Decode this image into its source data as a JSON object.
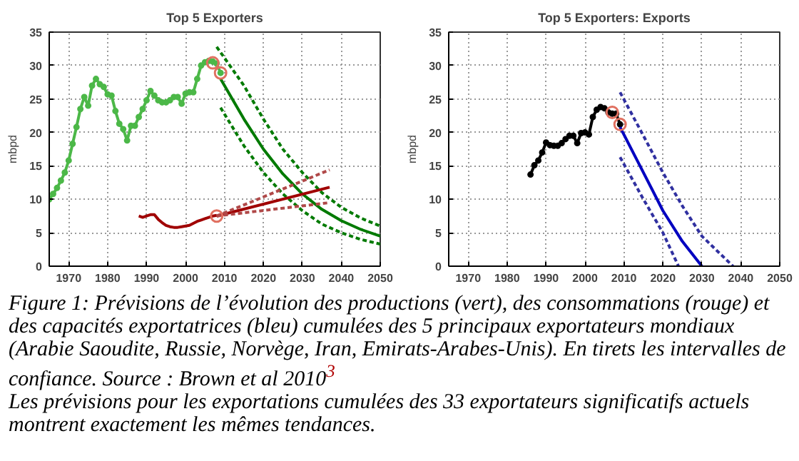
{
  "chart_data": [
    {
      "type": "line",
      "title": "Top 5 Exporters",
      "ylabel": "mbpd",
      "xlim": [
        1965,
        2050
      ],
      "ylim": [
        0,
        35
      ],
      "xticks": [
        1970,
        1980,
        1990,
        2000,
        2010,
        2020,
        2030,
        2040,
        2050
      ],
      "yticks": [
        {
          "value": 0,
          "label": "0"
        },
        5,
        10,
        15,
        20,
        25,
        30,
        35
      ],
      "grid": true,
      "marker": "none",
      "line_style": "solid",
      "series": [
        {
          "color": "#4cb848",
          "marker": "circle",
          "x": [
            1965,
            1966,
            1967,
            1968,
            1969,
            1970,
            1971,
            1972,
            1973,
            1974,
            1975,
            1976,
            1977,
            1978,
            1979,
            1980,
            1981,
            1982,
            1983,
            1984,
            1985,
            1986,
            1987,
            1988,
            1989,
            1990,
            1991,
            1992,
            1993,
            1994,
            1995,
            1996,
            1997,
            1998,
            1999,
            2000,
            2001,
            2002,
            2003,
            2004,
            2005,
            2006,
            2007,
            2008,
            2009
          ],
          "values": [
            10.0,
            10.8,
            11.7,
            12.8,
            14.0,
            15.8,
            18.3,
            20.8,
            23.5,
            25.3,
            24.0,
            27.0,
            28.0,
            27.2,
            26.8,
            25.7,
            25.5,
            23.2,
            21.3,
            20.5,
            18.8,
            21.0,
            21.0,
            22.3,
            23.5,
            24.8,
            26.2,
            25.5,
            24.8,
            24.5,
            24.5,
            24.8,
            25.3,
            25.3,
            24.3,
            25.8,
            26.0,
            26.0,
            28.0,
            30.0,
            30.5,
            30.7,
            30.6,
            30.3,
            28.9
          ]
        },
        {
          "color": "#007a00",
          "x": [
            2009,
            2015,
            2020,
            2025,
            2030,
            2035,
            2040,
            2045,
            2050
          ],
          "values": [
            28.0,
            22.0,
            17.5,
            13.8,
            10.8,
            8.5,
            6.8,
            5.5,
            4.5
          ]
        },
        {
          "color": "#007a00",
          "line_style": "dashed",
          "x": [
            2008,
            2015,
            2020,
            2025,
            2030,
            2035,
            2040,
            2045,
            2050
          ],
          "values": [
            32.8,
            27.0,
            22.0,
            17.5,
            14.0,
            11.0,
            8.8,
            7.2,
            6.0
          ]
        },
        {
          "color": "#007a00",
          "line_style": "dashed",
          "x": [
            2009,
            2015,
            2020,
            2025,
            2030,
            2035,
            2040,
            2045,
            2050
          ],
          "values": [
            23.7,
            18.0,
            14.0,
            10.8,
            8.3,
            6.3,
            5.0,
            4.0,
            3.3
          ]
        },
        {
          "color": "#a00000",
          "x": [
            1988,
            1989,
            1990,
            1991,
            1992,
            1993,
            1994,
            1995,
            1996,
            1997,
            1998,
            1999,
            2000,
            2001,
            2002,
            2003,
            2004,
            2005,
            2006,
            2007,
            2008
          ],
          "values": [
            7.5,
            7.3,
            7.5,
            7.7,
            7.7,
            7.0,
            6.5,
            6.1,
            5.9,
            5.8,
            5.8,
            5.9,
            6.0,
            6.1,
            6.4,
            6.7,
            6.9,
            7.1,
            7.3,
            7.5,
            7.6
          ]
        },
        {
          "color": "#a00000",
          "x": [
            2008,
            2037
          ],
          "values": [
            7.5,
            11.8
          ]
        },
        {
          "color": "#b04848",
          "line_style": "dashed",
          "x": [
            2008,
            2037
          ],
          "values": [
            7.5,
            14.4
          ]
        },
        {
          "color": "#b04848",
          "line_style": "dashed",
          "x": [
            2008,
            2037
          ],
          "values": [
            7.5,
            9.5
          ]
        },
        {
          "type": "scatter",
          "color": "#e07060",
          "marker": "circle",
          "x": [
            2007,
            2009,
            2008
          ],
          "values": [
            30.4,
            28.9,
            7.5
          ]
        }
      ],
      "annotations": [
        "Figure 1: Prévisions de l’évolution des productions (vert), des consommations (rouge) et des capacités exportatrices (bleu) cumulées des 5 principaux exportateurs mondiaux (Arabie Saoudite, Russie, Norvège, Iran, Emirats-Arabes-Unis). En tirets les intervalles de confiance. Source : Brown et al 2010$^{3}$",
        "Les prévisions pour les exportations cumulées des 33 exportateurs significatifs actuels montrent exactement les mêmes tendances."
      ]
    },
    {
      "type": "line",
      "title": "Top 5 Exporters: Exports",
      "ylabel": "mbpd",
      "xlim": [
        1965,
        2050
      ],
      "ylim": [
        0,
        35
      ],
      "xticks": [
        1970,
        1980,
        1990,
        2000,
        2010,
        2020,
        2030,
        2040,
        2050
      ],
      "yticks": [
        {
          "value": 0,
          "label": "0"
        },
        5,
        10,
        15,
        20,
        25,
        30,
        35
      ],
      "grid": true,
      "marker": "none",
      "line_style": "solid",
      "series": [
        {
          "color": "#000000",
          "marker": "circle",
          "x": [
            1986,
            1987,
            1988,
            1989,
            1990,
            1991,
            1992,
            1993,
            1994,
            1995,
            1996,
            1997,
            1998,
            1999,
            2000,
            2001,
            2002,
            2003,
            2004,
            2005,
            2006,
            2007,
            2008,
            2009
          ],
          "values": [
            13.7,
            15.1,
            15.8,
            17.0,
            18.5,
            18.1,
            18.0,
            18.0,
            18.4,
            19.0,
            19.5,
            19.5,
            18.4,
            19.9,
            20.0,
            19.7,
            22.3,
            23.4,
            23.8,
            23.6,
            23.0,
            22.8,
            22.8,
            21.2
          ]
        },
        {
          "color": "#0000c0",
          "x": [
            2009,
            2015,
            2020,
            2025,
            2030
          ],
          "values": [
            20.8,
            14.0,
            8.3,
            3.7,
            0
          ]
        },
        {
          "color": "#3030a0",
          "line_style": "dashed",
          "x": [
            2009,
            2015,
            2020,
            2025,
            2030,
            2038
          ],
          "values": [
            26.0,
            19.5,
            14.0,
            9.0,
            4.5,
            0
          ]
        },
        {
          "color": "#3030a0",
          "line_style": "dashed",
          "x": [
            2009,
            2015,
            2020,
            2024
          ],
          "values": [
            16.3,
            10.0,
            5.0,
            0
          ]
        },
        {
          "type": "scatter",
          "color": "#e07060",
          "marker": "circle",
          "x": [
            2007,
            2009
          ],
          "values": [
            23.0,
            21.2
          ]
        }
      ]
    }
  ]
}
